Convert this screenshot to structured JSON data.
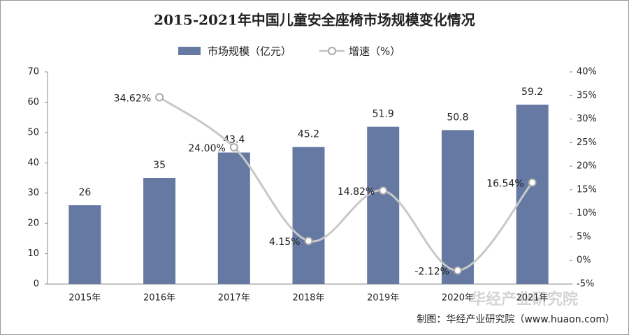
{
  "chart_data": {
    "type": "bar",
    "title": "2015-2021年中国儿童安全座椅市场规模变化情况",
    "categories": [
      "2015年",
      "2016年",
      "2017年",
      "2018年",
      "2019年",
      "2020年",
      "2021年"
    ],
    "series": [
      {
        "name": "市场规模（亿元）",
        "type": "bar",
        "color": "#6579a3",
        "values": [
          26,
          35,
          43.4,
          45.2,
          51.9,
          50.8,
          59.2
        ]
      },
      {
        "name": "增速（%）",
        "type": "line",
        "axis": "y2",
        "color": "#c8c8c8",
        "values": [
          null,
          34.62,
          24.0,
          4.15,
          14.82,
          -2.12,
          16.54
        ],
        "value_labels": [
          null,
          "34.62%",
          "24.00%",
          "4.15%",
          "14.82%",
          "-2.12%",
          "16.54%"
        ]
      }
    ],
    "ylim": [
      0,
      70
    ],
    "yticks": [
      0,
      10,
      20,
      30,
      40,
      50,
      60,
      70
    ],
    "y2lim": [
      -5,
      40
    ],
    "y2ticks": [
      {
        "value": -5,
        "label": "-5%"
      },
      {
        "value": 0,
        "label": "0%"
      },
      {
        "value": 5,
        "label": "5%"
      },
      {
        "value": 10,
        "label": "10%"
      },
      {
        "value": 15,
        "label": "15%"
      },
      {
        "value": 20,
        "label": "20%"
      },
      {
        "value": 25,
        "label": "25%"
      },
      {
        "value": 30,
        "label": "30%"
      },
      {
        "value": 35,
        "label": "35%"
      },
      {
        "value": 40,
        "label": "40%"
      }
    ],
    "legend": "top",
    "source": "制图：华经产业研究院（www.huaon.com）",
    "watermark": "华经产业研究院"
  }
}
